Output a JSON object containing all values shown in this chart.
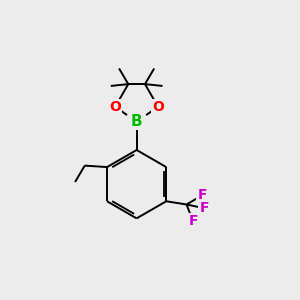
{
  "bg_color": "#ececec",
  "bond_color": "#000000",
  "B_color": "#00bb00",
  "O_color": "#ff0000",
  "F_color": "#cc00cc",
  "bond_lw": 1.4,
  "font_size_atom": 10,
  "xlim": [
    0,
    10
  ],
  "ylim": [
    0,
    10
  ]
}
